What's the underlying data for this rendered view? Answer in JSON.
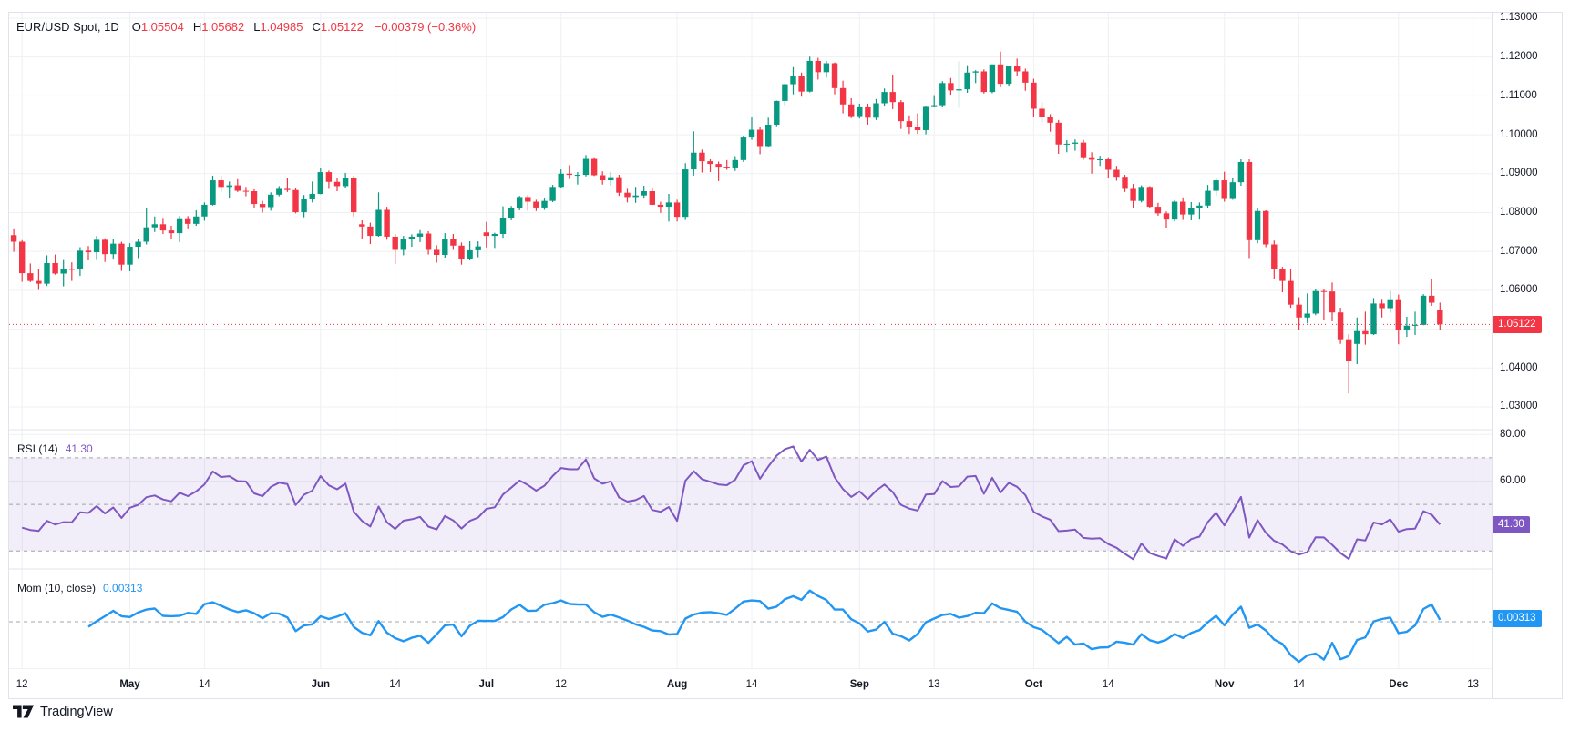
{
  "header": {
    "symbol": "EUR/USD Spot, 1D",
    "ohlc": [
      {
        "k": "O",
        "v": "1.05504"
      },
      {
        "k": "H",
        "v": "1.05682"
      },
      {
        "k": "L",
        "v": "1.04985"
      },
      {
        "k": "C",
        "v": "1.05122"
      }
    ],
    "change": "−0.00379 (−0.36%)"
  },
  "price_scale": {
    "labels": [
      {
        "t": "1.13000",
        "v": 1.13
      },
      {
        "t": "1.12000",
        "v": 1.12
      },
      {
        "t": "1.11000",
        "v": 1.11
      },
      {
        "t": "1.10000",
        "v": 1.1
      },
      {
        "t": "1.09000",
        "v": 1.09
      },
      {
        "t": "1.08000",
        "v": 1.08
      },
      {
        "t": "1.07000",
        "v": 1.07
      },
      {
        "t": "1.06000",
        "v": 1.06
      },
      {
        "t": "1.05000",
        "v": 1.05
      },
      {
        "t": "1.04000",
        "v": 1.04
      },
      {
        "t": "1.03000",
        "v": 1.03
      }
    ],
    "last_price_label": "1.05122",
    "last_price": 1.05122
  },
  "indicators": {
    "rsi": {
      "title": "RSI (14)",
      "value_label": "41.30",
      "value": 41.3,
      "axis_labels": [
        {
          "t": "80.00",
          "v": 80
        },
        {
          "t": "60.00",
          "v": 60
        }
      ],
      "levels": [
        70,
        50,
        30
      ],
      "band": [
        30,
        70
      ]
    },
    "mom": {
      "title": "Mom (10, close)",
      "value_label": "0.00313",
      "value": 0.00313,
      "zero_level": 0
    }
  },
  "time_axis": {
    "ticks": [
      {
        "t": "12",
        "i": 2,
        "m": false
      },
      {
        "t": "May",
        "i": 15,
        "m": true
      },
      {
        "t": "14",
        "i": 24,
        "m": false
      },
      {
        "t": "Jun",
        "i": 38,
        "m": true
      },
      {
        "t": "14",
        "i": 47,
        "m": false
      },
      {
        "t": "Jul",
        "i": 58,
        "m": true
      },
      {
        "t": "12",
        "i": 67,
        "m": false
      },
      {
        "t": "Aug",
        "i": 81,
        "m": true
      },
      {
        "t": "14",
        "i": 90,
        "m": false
      },
      {
        "t": "Sep",
        "i": 103,
        "m": true
      },
      {
        "t": "13",
        "i": 112,
        "m": false
      },
      {
        "t": "Oct",
        "i": 124,
        "m": true
      },
      {
        "t": "14",
        "i": 133,
        "m": false
      },
      {
        "t": "Nov",
        "i": 147,
        "m": true
      },
      {
        "t": "14",
        "i": 156,
        "m": false
      },
      {
        "t": "Dec",
        "i": 168,
        "m": true
      },
      {
        "t": "13",
        "i": 177,
        "m": false
      }
    ]
  },
  "branding": {
    "name": "TradingView"
  },
  "colors": {
    "up": "#089981",
    "down": "#f23645",
    "rsi_line": "#7e57c2",
    "rsi_band": "rgba(126,87,194,0.10)",
    "mom_line": "#2196f3",
    "grid": "#eef0f3",
    "separator": "#e0e3eb",
    "dash_level": "#8a8e99",
    "price_line": "#f23645",
    "text": "#131722"
  },
  "chart_data": {
    "type": "candlestick",
    "symbol": "EUR/USD Spot",
    "interval": "1D",
    "price_axis_range": [
      1.0242,
      1.1314
    ],
    "indicator_params": {
      "rsi_period": 14,
      "mom_period": 10
    },
    "ohlc": [
      [
        1.086,
        1.0865,
        1.073,
        1.0742
      ],
      [
        1.0742,
        1.0757,
        1.0699,
        1.0725
      ],
      [
        1.0725,
        1.0729,
        1.0622,
        1.0644
      ],
      [
        1.0644,
        1.0669,
        1.0621,
        1.0624
      ],
      [
        1.0624,
        1.0654,
        1.0601,
        1.0617
      ],
      [
        1.0617,
        1.069,
        1.0611,
        1.067
      ],
      [
        1.067,
        1.0692,
        1.064,
        1.0643
      ],
      [
        1.0643,
        1.0678,
        1.061,
        1.0655
      ],
      [
        1.0655,
        1.0672,
        1.0624,
        1.0654
      ],
      [
        1.0654,
        1.0711,
        1.0637,
        1.0702
      ],
      [
        1.0702,
        1.0714,
        1.0677,
        1.0698
      ],
      [
        1.0698,
        1.074,
        1.0678,
        1.073
      ],
      [
        1.073,
        1.0734,
        1.0673,
        1.0693
      ],
      [
        1.0693,
        1.0733,
        1.0679,
        1.072
      ],
      [
        1.072,
        1.0725,
        1.065,
        1.0666
      ],
      [
        1.0666,
        1.0721,
        1.0649,
        1.0712
      ],
      [
        1.0712,
        1.0731,
        1.0683,
        1.0725
      ],
      [
        1.0725,
        1.0812,
        1.0718,
        1.0762
      ],
      [
        1.0762,
        1.079,
        1.075,
        1.077
      ],
      [
        1.077,
        1.0784,
        1.0745,
        1.0754
      ],
      [
        1.0754,
        1.0766,
        1.0733,
        1.0747
      ],
      [
        1.0747,
        1.0791,
        1.0724,
        1.0783
      ],
      [
        1.0783,
        1.0791,
        1.0757,
        1.0771
      ],
      [
        1.0771,
        1.0806,
        1.0766,
        1.079
      ],
      [
        1.079,
        1.0826,
        1.0779,
        1.082
      ],
      [
        1.082,
        1.0895,
        1.0818,
        1.0883
      ],
      [
        1.0883,
        1.0895,
        1.0854,
        1.0866
      ],
      [
        1.0866,
        1.088,
        1.0836,
        1.087
      ],
      [
        1.087,
        1.0886,
        1.0853,
        1.0856
      ],
      [
        1.0856,
        1.0866,
        1.0842,
        1.0855
      ],
      [
        1.0855,
        1.086,
        1.0812,
        1.0822
      ],
      [
        1.0822,
        1.083,
        1.08,
        1.0814
      ],
      [
        1.0814,
        1.0852,
        1.0805,
        1.0846
      ],
      [
        1.0846,
        1.0868,
        1.0842,
        1.0861
      ],
      [
        1.0861,
        1.0889,
        1.0853,
        1.0858
      ],
      [
        1.0858,
        1.0862,
        1.0798,
        1.0801
      ],
      [
        1.0801,
        1.0845,
        1.0788,
        1.0834
      ],
      [
        1.0834,
        1.088,
        1.0826,
        1.0848
      ],
      [
        1.0848,
        1.0916,
        1.0847,
        1.0904
      ],
      [
        1.0904,
        1.0908,
        1.0861,
        1.0879
      ],
      [
        1.0879,
        1.0888,
        1.0855,
        1.0868
      ],
      [
        1.0868,
        1.0902,
        1.0862,
        1.0889
      ],
      [
        1.0889,
        1.0894,
        1.079,
        1.0801
      ],
      [
        1.077,
        1.078,
        1.0733,
        1.0764
      ],
      [
        1.0764,
        1.0774,
        1.0719,
        1.074
      ],
      [
        1.074,
        1.0852,
        1.0738,
        1.0807
      ],
      [
        1.0807,
        1.0815,
        1.073,
        1.0738
      ],
      [
        1.0738,
        1.0745,
        1.0668,
        1.0704
      ],
      [
        1.0704,
        1.074,
        1.069,
        1.0733
      ],
      [
        1.0733,
        1.0744,
        1.0712,
        1.0738
      ],
      [
        1.0738,
        1.0755,
        1.0724,
        1.0746
      ],
      [
        1.0746,
        1.0752,
        1.0692,
        1.0704
      ],
      [
        1.0704,
        1.0716,
        1.0671,
        1.0691
      ],
      [
        1.0691,
        1.0747,
        1.0684,
        1.0733
      ],
      [
        1.0733,
        1.0745,
        1.0704,
        1.0715
      ],
      [
        1.0715,
        1.0723,
        1.0666,
        1.068
      ],
      [
        1.068,
        1.0726,
        1.0677,
        1.0703
      ],
      [
        1.0703,
        1.0726,
        1.0685,
        1.0713
      ],
      [
        1.0749,
        1.0776,
        1.071,
        1.074
      ],
      [
        1.074,
        1.0748,
        1.0709,
        1.0745
      ],
      [
        1.0745,
        1.0816,
        1.0735,
        1.0787
      ],
      [
        1.0787,
        1.0817,
        1.078,
        1.0812
      ],
      [
        1.0812,
        1.0843,
        1.0806,
        1.084
      ],
      [
        1.084,
        1.0845,
        1.0805,
        1.0828
      ],
      [
        1.0828,
        1.0833,
        1.0804,
        1.0813
      ],
      [
        1.0813,
        1.0836,
        1.0807,
        1.083
      ],
      [
        1.083,
        1.0871,
        1.0827,
        1.0866
      ],
      [
        1.0866,
        1.0911,
        1.0862,
        1.09
      ],
      [
        1.09,
        1.0922,
        1.0886,
        1.0897
      ],
      [
        1.0897,
        1.0904,
        1.0872,
        1.0897
      ],
      [
        1.0897,
        1.0948,
        1.0893,
        1.0938
      ],
      [
        1.0938,
        1.094,
        1.0894,
        1.0896
      ],
      [
        1.0896,
        1.0906,
        1.0872,
        1.0883
      ],
      [
        1.0883,
        1.0904,
        1.087,
        1.0891
      ],
      [
        1.0891,
        1.0897,
        1.0843,
        1.0851
      ],
      [
        1.0851,
        1.0861,
        1.0826,
        1.084
      ],
      [
        1.084,
        1.0866,
        1.0825,
        1.0844
      ],
      [
        1.0844,
        1.0869,
        1.0836,
        1.0855
      ],
      [
        1.0855,
        1.0864,
        1.0819,
        1.082
      ],
      [
        1.082,
        1.0828,
        1.0799,
        1.0815
      ],
      [
        1.0815,
        1.0848,
        1.0777,
        1.0826
      ],
      [
        1.0826,
        1.0833,
        1.0777,
        1.0789
      ],
      [
        1.0789,
        1.0927,
        1.0781,
        1.0911
      ],
      [
        1.0911,
        1.1009,
        1.0895,
        1.0954
      ],
      [
        1.0954,
        1.0962,
        1.0903,
        1.0932
      ],
      [
        1.0932,
        1.0937,
        1.0904,
        1.0925
      ],
      [
        1.0925,
        1.0931,
        1.0881,
        1.0918
      ],
      [
        1.0918,
        1.0935,
        1.091,
        1.0916
      ],
      [
        1.0916,
        1.0945,
        1.0907,
        1.0935
      ],
      [
        1.0935,
        1.0998,
        1.093,
        1.0993
      ],
      [
        1.0993,
        1.1047,
        1.0987,
        1.1013
      ],
      [
        1.1013,
        1.1019,
        1.095,
        1.0971
      ],
      [
        1.0971,
        1.1044,
        1.0969,
        1.1026
      ],
      [
        1.1026,
        1.1088,
        1.1022,
        1.1087
      ],
      [
        1.1087,
        1.1132,
        1.1076,
        1.113
      ],
      [
        1.113,
        1.1174,
        1.1104,
        1.115
      ],
      [
        1.115,
        1.116,
        1.1098,
        1.1111
      ],
      [
        1.1111,
        1.1201,
        1.1109,
        1.119
      ],
      [
        1.119,
        1.1198,
        1.1142,
        1.1161
      ],
      [
        1.1161,
        1.119,
        1.1147,
        1.1184
      ],
      [
        1.1184,
        1.1186,
        1.1104,
        1.112
      ],
      [
        1.112,
        1.1139,
        1.1055,
        1.1078
      ],
      [
        1.1078,
        1.1094,
        1.1043,
        1.1048
      ],
      [
        1.1048,
        1.108,
        1.1042,
        1.1073
      ],
      [
        1.1073,
        1.108,
        1.1026,
        1.1044
      ],
      [
        1.1044,
        1.1092,
        1.1038,
        1.1081
      ],
      [
        1.1081,
        1.1119,
        1.1075,
        1.111
      ],
      [
        1.111,
        1.1155,
        1.1066,
        1.1084
      ],
      [
        1.1084,
        1.1089,
        1.1015,
        1.1035
      ],
      [
        1.1035,
        1.105,
        1.1002,
        1.102
      ],
      [
        1.102,
        1.1055,
        1.1002,
        1.1012
      ],
      [
        1.1012,
        1.1075,
        1.1001,
        1.1074
      ],
      [
        1.1074,
        1.1102,
        1.1071,
        1.1076
      ],
      [
        1.1076,
        1.1138,
        1.1071,
        1.1133
      ],
      [
        1.1133,
        1.1146,
        1.1103,
        1.1114
      ],
      [
        1.1114,
        1.1189,
        1.1069,
        1.1117
      ],
      [
        1.1117,
        1.1179,
        1.1108,
        1.116
      ],
      [
        1.116,
        1.1166,
        1.1133,
        1.1163
      ],
      [
        1.1163,
        1.1168,
        1.1106,
        1.111
      ],
      [
        1.111,
        1.1181,
        1.1107,
        1.1181
      ],
      [
        1.1181,
        1.1214,
        1.1122,
        1.1131
      ],
      [
        1.1131,
        1.1178,
        1.1124,
        1.1177
      ],
      [
        1.1177,
        1.1196,
        1.1152,
        1.1163
      ],
      [
        1.1163,
        1.117,
        1.1113,
        1.1134
      ],
      [
        1.1134,
        1.1144,
        1.1046,
        1.1067
      ],
      [
        1.1067,
        1.1083,
        1.1032,
        1.1046
      ],
      [
        1.1046,
        1.1053,
        1.1008,
        1.1031
      ],
      [
        1.1031,
        1.1038,
        1.0951,
        1.0975
      ],
      [
        1.0975,
        1.0986,
        1.0955,
        1.0977
      ],
      [
        1.0977,
        1.0988,
        1.0959,
        1.098
      ],
      [
        1.098,
        1.0987,
        1.0936,
        1.094
      ],
      [
        1.094,
        1.0955,
        1.09,
        1.0936
      ],
      [
        1.0936,
        1.0946,
        1.092,
        1.0937
      ],
      [
        1.0937,
        1.094,
        1.0889,
        1.091
      ],
      [
        1.091,
        1.092,
        1.0882,
        1.0892
      ],
      [
        1.0892,
        1.0897,
        1.0853,
        1.0861
      ],
      [
        1.0861,
        1.0874,
        1.0811,
        1.083
      ],
      [
        1.083,
        1.087,
        1.0826,
        1.0866
      ],
      [
        1.0866,
        1.0868,
        1.0811,
        1.0815
      ],
      [
        1.0815,
        1.0825,
        1.0792,
        1.0798
      ],
      [
        1.0798,
        1.0803,
        1.0761,
        1.0782
      ],
      [
        1.0782,
        1.0832,
        1.0777,
        1.0828
      ],
      [
        1.0828,
        1.0839,
        1.0781,
        1.0795
      ],
      [
        1.0795,
        1.0827,
        1.078,
        1.0812
      ],
      [
        1.0812,
        1.0826,
        1.0782,
        1.0818
      ],
      [
        1.0818,
        1.0871,
        1.0812,
        1.0856
      ],
      [
        1.0856,
        1.0888,
        1.0844,
        1.0883
      ],
      [
        1.0883,
        1.0905,
        1.0828,
        1.0835
      ],
      [
        1.0835,
        1.089,
        1.0833,
        1.0878
      ],
      [
        1.0878,
        1.0937,
        1.0869,
        1.093
      ],
      [
        1.093,
        1.0937,
        1.0683,
        1.0729
      ],
      [
        1.0729,
        1.0812,
        1.0721,
        1.0804
      ],
      [
        1.0804,
        1.0806,
        1.0711,
        1.0718
      ],
      [
        1.0718,
        1.0728,
        1.0629,
        1.0655
      ],
      [
        1.0655,
        1.066,
        1.0595,
        1.0624
      ],
      [
        1.0624,
        1.0655,
        1.0555,
        1.0563
      ],
      [
        1.0563,
        1.0582,
        1.0497,
        1.053
      ],
      [
        1.053,
        1.0592,
        1.0515,
        1.054
      ],
      [
        1.054,
        1.0603,
        1.0536,
        1.0598
      ],
      [
        1.0598,
        1.0602,
        1.0524,
        1.0597
      ],
      [
        1.0597,
        1.062,
        1.052,
        1.0543
      ],
      [
        1.0543,
        1.0555,
        1.0462,
        1.0474
      ],
      [
        1.0474,
        1.0487,
        1.0335,
        1.0417
      ],
      [
        1.0462,
        1.053,
        1.041,
        1.0495
      ],
      [
        1.0495,
        1.0545,
        1.046,
        1.0487
      ],
      [
        1.0487,
        1.058,
        1.0485,
        1.0566
      ],
      [
        1.0566,
        1.0578,
        1.053,
        1.0554
      ],
      [
        1.0554,
        1.0598,
        1.0542,
        1.0577
      ],
      [
        1.0577,
        1.0589,
        1.0461,
        1.0498
      ],
      [
        1.0498,
        1.0532,
        1.048,
        1.0509
      ],
      [
        1.0509,
        1.0545,
        1.0485,
        1.0511
      ],
      [
        1.0511,
        1.059,
        1.051,
        1.0586
      ],
      [
        1.0586,
        1.0629,
        1.056,
        1.0568
      ],
      [
        1.05504,
        1.05682,
        1.04985,
        1.05122
      ]
    ]
  }
}
